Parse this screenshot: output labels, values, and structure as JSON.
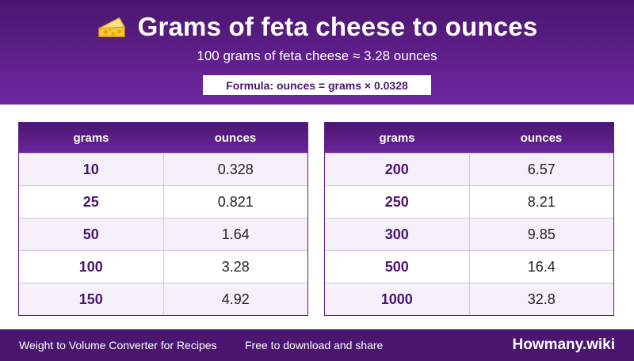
{
  "header": {
    "icon": "cheese-icon",
    "title": "Grams of feta cheese to ounces",
    "subtitle": "100 grams of feta cheese ≈ 3.28 ounces",
    "formula": "Formula: ounces = grams × 0.0328"
  },
  "tables": {
    "left": {
      "col_grams": "grams",
      "col_ounces": "ounces",
      "rows": [
        {
          "grams": "10",
          "ounces": "0.328"
        },
        {
          "grams": "25",
          "ounces": "0.821"
        },
        {
          "grams": "50",
          "ounces": "1.64"
        },
        {
          "grams": "100",
          "ounces": "3.28"
        },
        {
          "grams": "150",
          "ounces": "4.92"
        }
      ]
    },
    "right": {
      "col_grams": "grams",
      "col_ounces": "ounces",
      "rows": [
        {
          "grams": "200",
          "ounces": "6.57"
        },
        {
          "grams": "250",
          "ounces": "8.21"
        },
        {
          "grams": "300",
          "ounces": "9.85"
        },
        {
          "grams": "500",
          "ounces": "16.4"
        },
        {
          "grams": "1000",
          "ounces": "32.8"
        }
      ]
    }
  },
  "footer": {
    "app_name": "Weight to Volume Converter for Recipes",
    "tagline": "Free to download and share",
    "brand": "Howmany.wiki"
  },
  "colors": {
    "brand_purple": "#4a1670",
    "accent_purple": "#6e26a0",
    "cheese_yellow": "#f7c531"
  }
}
